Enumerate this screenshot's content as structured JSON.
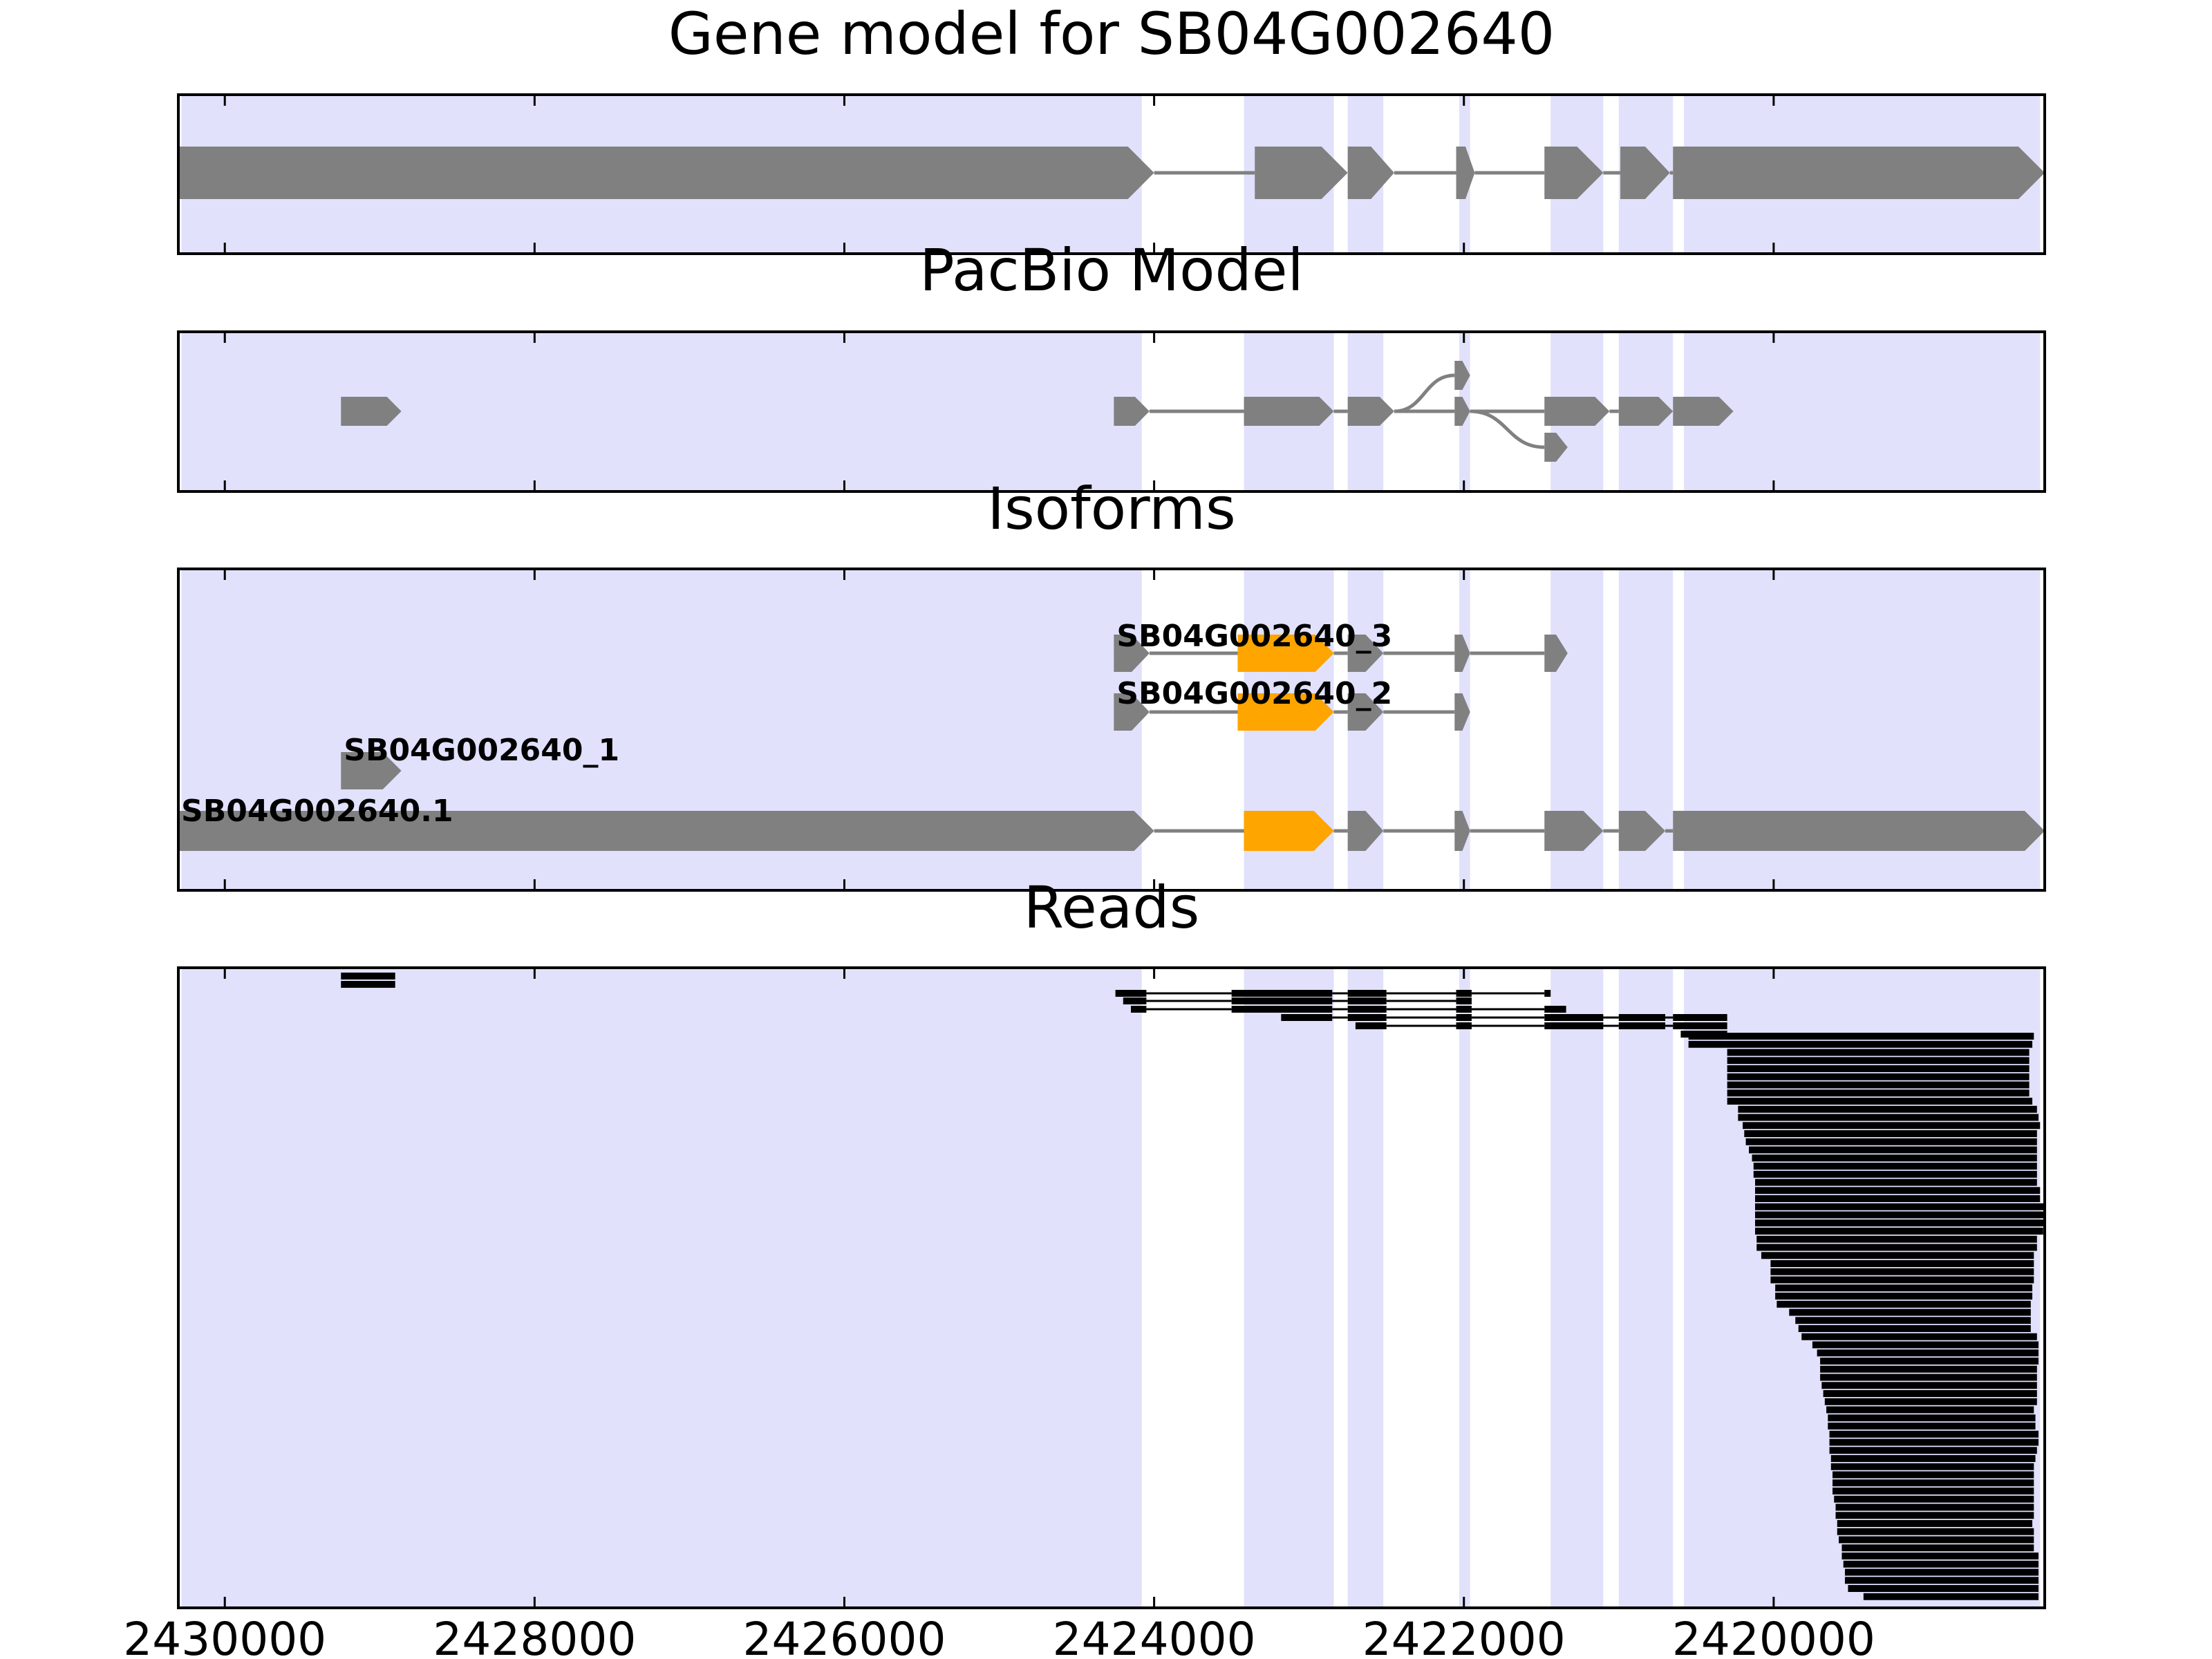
{
  "chart_data": [
    {
      "type": "gene-model",
      "title": "Gene model for SB04G002640",
      "xlim": [
        2430300,
        2418250
      ],
      "highlight_regions": [
        [
          2430280,
          2424080
        ],
        [
          2423420,
          2422840
        ],
        [
          2422750,
          2422520
        ],
        [
          2422030,
          2421960
        ],
        [
          2421440,
          2421100
        ],
        [
          2421000,
          2420650
        ],
        [
          2420580,
          2418280
        ]
      ],
      "features": [
        {
          "start": 2430300,
          "end": 2424000,
          "kind": "exon"
        },
        {
          "start": 2424000,
          "end": 2423350,
          "kind": "intron"
        },
        {
          "start": 2423350,
          "end": 2422750,
          "kind": "exon"
        },
        {
          "start": 2422750,
          "end": 2422750,
          "kind": "intron"
        },
        {
          "start": 2422750,
          "end": 2422450,
          "kind": "exon"
        },
        {
          "start": 2422450,
          "end": 2422050,
          "kind": "intron"
        },
        {
          "start": 2422050,
          "end": 2421930,
          "kind": "exon"
        },
        {
          "start": 2421930,
          "end": 2421480,
          "kind": "intron"
        },
        {
          "start": 2421480,
          "end": 2421100,
          "kind": "exon"
        },
        {
          "start": 2421100,
          "end": 2420990,
          "kind": "intron"
        },
        {
          "start": 2420990,
          "end": 2420670,
          "kind": "exon"
        },
        {
          "start": 2420670,
          "end": 2420650,
          "kind": "intron"
        },
        {
          "start": 2420650,
          "end": 2418250,
          "kind": "exon"
        }
      ]
    },
    {
      "type": "gene-model",
      "title": "PacBio Model",
      "xlim": [
        2430300,
        2418250
      ],
      "highlight_regions": [
        [
          2430280,
          2424080
        ],
        [
          2423420,
          2422840
        ],
        [
          2422750,
          2422520
        ],
        [
          2422030,
          2421960
        ],
        [
          2421440,
          2421100
        ],
        [
          2421000,
          2420650
        ],
        [
          2420580,
          2418280
        ]
      ],
      "nodes": [
        {
          "start": 2429250,
          "end": 2428860,
          "lane": 0
        },
        {
          "start": 2424260,
          "end": 2424030,
          "lane": 0
        },
        {
          "start": 2423420,
          "end": 2422840,
          "lane": 0
        },
        {
          "start": 2422750,
          "end": 2422450,
          "lane": 0
        },
        {
          "start": 2422060,
          "end": 2421960,
          "lane": 1
        },
        {
          "start": 2422060,
          "end": 2421960,
          "lane": 0
        },
        {
          "start": 2421480,
          "end": 2421330,
          "lane": -1
        },
        {
          "start": 2421480,
          "end": 2421060,
          "lane": 0
        },
        {
          "start": 2421000,
          "end": 2420650,
          "lane": 0
        },
        {
          "start": 2420650,
          "end": 2420260,
          "lane": 0
        }
      ],
      "edges": [
        [
          1,
          2
        ],
        [
          2,
          3
        ],
        [
          3,
          4
        ],
        [
          3,
          5
        ],
        [
          5,
          6
        ],
        [
          5,
          7
        ],
        [
          7,
          8
        ],
        [
          8,
          9
        ]
      ]
    },
    {
      "type": "isoforms",
      "title": "Isoforms",
      "xlim": [
        2430300,
        2418250
      ],
      "highlight_regions": [
        [
          2430280,
          2424080
        ],
        [
          2423420,
          2422840
        ],
        [
          2422750,
          2422520
        ],
        [
          2422030,
          2421960
        ],
        [
          2421440,
          2421100
        ],
        [
          2421000,
          2420650
        ],
        [
          2420580,
          2418280
        ]
      ],
      "isoforms": [
        {
          "name": "SB04G002640_3",
          "exons": [
            [
              2424260,
              2424030
            ],
            [
              2423460,
              2422840
            ],
            [
              2422750,
              2422520
            ],
            [
              2422060,
              2421960
            ],
            [
              2421480,
              2421330
            ]
          ],
          "cds": [
            [
              2423460,
              2422840
            ]
          ]
        },
        {
          "name": "SB04G002640_2",
          "exons": [
            [
              2424260,
              2424030
            ],
            [
              2423460,
              2422840
            ],
            [
              2422750,
              2422520
            ],
            [
              2422060,
              2421960
            ]
          ],
          "cds": [
            [
              2423460,
              2422840
            ]
          ]
        },
        {
          "name": "SB04G002640_1",
          "exons": [
            [
              2429250,
              2428860
            ]
          ],
          "cds": []
        },
        {
          "name": "SB04G002640.1",
          "exons": [
            [
              2430300,
              2424000
            ],
            [
              2423420,
              2422840
            ],
            [
              2422750,
              2422520
            ],
            [
              2422060,
              2421960
            ],
            [
              2421480,
              2421100
            ],
            [
              2421000,
              2420700
            ],
            [
              2420650,
              2418250
            ]
          ],
          "cds": [
            [
              2423420,
              2422840
            ]
          ]
        }
      ]
    },
    {
      "type": "reads",
      "title": "Reads",
      "xlim": [
        2430300,
        2418250
      ],
      "xticks": [
        2430000,
        2428000,
        2426000,
        2424000,
        2422000,
        2420000
      ],
      "xtick_labels": [
        "2430000",
        "2428000",
        "2426000",
        "2424000",
        "2422000",
        "2420000"
      ],
      "highlight_regions": [
        [
          2430280,
          2424080
        ],
        [
          2423420,
          2422840
        ],
        [
          2422750,
          2422520
        ],
        [
          2422030,
          2421960
        ],
        [
          2421440,
          2421100
        ],
        [
          2421000,
          2420650
        ],
        [
          2420580,
          2418280
        ]
      ],
      "spliced_reads": [
        [
          [
            2429250,
            2428900
          ]
        ],
        [
          [
            2429250,
            2428900
          ]
        ],
        [
          [
            2424250,
            2424050
          ],
          [
            2423500,
            2422850
          ],
          [
            2422750,
            2422500
          ],
          [
            2422050,
            2421950
          ],
          [
            2421480,
            2421440
          ]
        ],
        [
          [
            2424200,
            2424050
          ],
          [
            2423500,
            2422850
          ],
          [
            2422750,
            2422500
          ],
          [
            2422050,
            2421950
          ]
        ],
        [
          [
            2424150,
            2424050
          ],
          [
            2423500,
            2422850
          ],
          [
            2422750,
            2422500
          ],
          [
            2422050,
            2421950
          ],
          [
            2421480,
            2421340
          ]
        ],
        [
          [
            2423180,
            2422850
          ],
          [
            2422750,
            2422500
          ],
          [
            2422050,
            2421950
          ],
          [
            2421480,
            2421100
          ],
          [
            2421000,
            2420700
          ],
          [
            2420650,
            2420300
          ]
        ],
        [
          [
            2422700,
            2422500
          ],
          [
            2422050,
            2421950
          ],
          [
            2421480,
            2421100
          ],
          [
            2421000,
            2420700
          ],
          [
            2420650,
            2420300
          ]
        ],
        [
          [
            2420600,
            2420300
          ]
        ]
      ],
      "unspliced_reads": [
        [
          2420550,
          2418320
        ],
        [
          2420550,
          2418330
        ],
        [
          2420300,
          2418350
        ],
        [
          2420300,
          2418350
        ],
        [
          2420300,
          2418350
        ],
        [
          2420300,
          2418350
        ],
        [
          2420300,
          2418350
        ],
        [
          2420300,
          2418350
        ],
        [
          2420300,
          2418330
        ],
        [
          2420230,
          2418300
        ],
        [
          2420230,
          2418290
        ],
        [
          2420200,
          2418280
        ],
        [
          2420190,
          2418300
        ],
        [
          2420180,
          2418300
        ],
        [
          2420160,
          2418300
        ],
        [
          2420140,
          2418300
        ],
        [
          2420130,
          2418300
        ],
        [
          2420130,
          2418300
        ],
        [
          2420120,
          2418300
        ],
        [
          2420120,
          2418280
        ],
        [
          2420120,
          2418280
        ],
        [
          2420120,
          2418250
        ],
        [
          2420120,
          2418250
        ],
        [
          2420120,
          2418250
        ],
        [
          2420120,
          2418260
        ],
        [
          2420110,
          2418300
        ],
        [
          2420110,
          2418300
        ],
        [
          2420080,
          2418320
        ],
        [
          2420020,
          2418320
        ],
        [
          2420020,
          2418320
        ],
        [
          2420020,
          2418320
        ],
        [
          2419990,
          2418330
        ],
        [
          2419990,
          2418330
        ],
        [
          2419980,
          2418340
        ],
        [
          2419900,
          2418340
        ],
        [
          2419860,
          2418340
        ],
        [
          2419840,
          2418340
        ],
        [
          2419820,
          2418300
        ],
        [
          2419750,
          2418290
        ],
        [
          2419720,
          2418290
        ],
        [
          2419700,
          2418290
        ],
        [
          2419700,
          2418300
        ],
        [
          2419700,
          2418300
        ],
        [
          2419690,
          2418300
        ],
        [
          2419680,
          2418300
        ],
        [
          2419670,
          2418300
        ],
        [
          2419660,
          2418320
        ],
        [
          2419650,
          2418310
        ],
        [
          2419650,
          2418310
        ],
        [
          2419640,
          2418290
        ],
        [
          2419640,
          2418290
        ],
        [
          2419640,
          2418300
        ],
        [
          2419630,
          2418310
        ],
        [
          2419630,
          2418320
        ],
        [
          2419620,
          2418320
        ],
        [
          2419620,
          2418320
        ],
        [
          2419620,
          2418320
        ],
        [
          2419610,
          2418320
        ],
        [
          2419600,
          2418320
        ],
        [
          2419600,
          2418320
        ],
        [
          2419590,
          2418330
        ],
        [
          2419590,
          2418320
        ],
        [
          2419580,
          2418320
        ],
        [
          2419560,
          2418320
        ],
        [
          2419560,
          2418290
        ],
        [
          2419550,
          2418290
        ],
        [
          2419540,
          2418290
        ],
        [
          2419540,
          2418290
        ],
        [
          2419520,
          2418290
        ],
        [
          2419420,
          2418290
        ]
      ]
    }
  ],
  "style": {
    "highlight_color": "#e1e1fc",
    "feature_color": "#808080",
    "cds_color": "#ffa500",
    "read_color": "#000000"
  }
}
